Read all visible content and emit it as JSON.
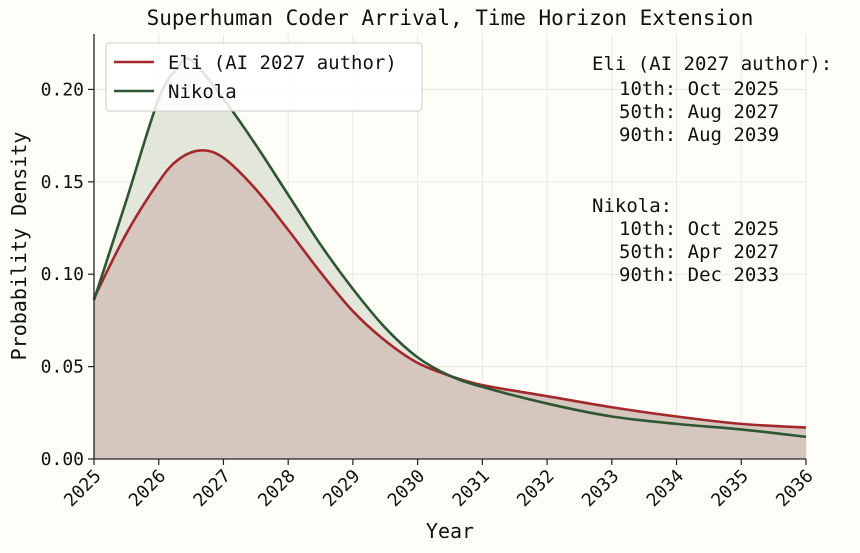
{
  "chart_data": {
    "type": "area",
    "title": "Superhuman Coder Arrival, Time Horizon Extension",
    "xlabel": "Year",
    "ylabel": "Probability Density",
    "xlim": [
      2025,
      2036
    ],
    "ylim": [
      0,
      0.23
    ],
    "grid": true,
    "legend_position": "top-left",
    "x_ticks": [
      "2025",
      "2026",
      "2027",
      "2028",
      "2029",
      "2030",
      "2031",
      "2032",
      "2033",
      "2034",
      "2035",
      "2036"
    ],
    "y_ticks": [
      "0.00",
      "0.05",
      "0.10",
      "0.15",
      "0.20"
    ],
    "series": [
      {
        "name": "Eli (AI 2027 author)",
        "color": "#a3282b",
        "fill": "#d6c7be",
        "x": [
          2025,
          2025.5,
          2026,
          2026.3,
          2026.65,
          2027,
          2027.5,
          2028,
          2028.5,
          2029,
          2029.5,
          2030,
          2030.5,
          2031,
          2032,
          2033,
          2034,
          2035,
          2036
        ],
        "y": [
          0.087,
          0.122,
          0.15,
          0.162,
          0.167,
          0.163,
          0.146,
          0.124,
          0.101,
          0.08,
          0.064,
          0.052,
          0.045,
          0.04,
          0.034,
          0.028,
          0.023,
          0.019,
          0.017
        ]
      },
      {
        "name": "Nikola",
        "color": "#2d5730",
        "fill": "#e3e6db",
        "x": [
          2025,
          2025.5,
          2026,
          2026.3,
          2026.5,
          2027,
          2027.5,
          2028,
          2028.5,
          2029,
          2029.5,
          2030,
          2030.5,
          2031,
          2032,
          2033,
          2034,
          2035,
          2036
        ],
        "y": [
          0.086,
          0.14,
          0.195,
          0.212,
          0.216,
          0.195,
          0.17,
          0.143,
          0.116,
          0.092,
          0.071,
          0.055,
          0.045,
          0.039,
          0.03,
          0.023,
          0.019,
          0.016,
          0.012
        ]
      }
    ],
    "annotations": [
      {
        "label": "Eli (AI 2027 author):",
        "lines": [
          "10th: Oct 2025",
          "50th: Aug 2027",
          "90th: Aug 2039"
        ]
      },
      {
        "label": "Nikola:",
        "lines": [
          "10th: Oct 2025",
          "50th: Apr 2027",
          "90th: Dec 2033"
        ]
      }
    ]
  }
}
